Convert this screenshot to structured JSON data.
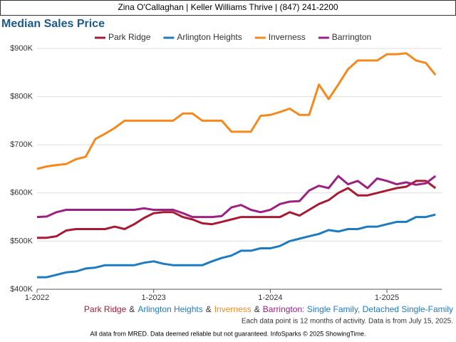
{
  "header": "Zina O'Callaghan | Keller Williams Thrive | (847) 241-2200",
  "chart_data": {
    "type": "line",
    "title": "Median Sales Price",
    "categories": [
      "1-2022",
      null,
      null,
      null,
      null,
      null,
      null,
      null,
      null,
      null,
      null,
      null,
      "1-2023",
      null,
      null,
      null,
      null,
      null,
      null,
      null,
      null,
      null,
      null,
      null,
      "1-2024",
      null,
      null,
      null,
      null,
      null,
      null,
      null,
      null,
      null,
      null,
      null,
      "1-2025",
      null,
      null,
      null,
      null,
      null
    ],
    "series": [
      {
        "name": "Park Ridge",
        "color": "#a81a34",
        "values": [
          507000,
          507000,
          510000,
          522000,
          525000,
          525000,
          525000,
          525000,
          530000,
          525000,
          535000,
          548000,
          558000,
          560000,
          560000,
          550000,
          545000,
          537000,
          535000,
          540000,
          545000,
          550000,
          550000,
          550000,
          550000,
          550000,
          560000,
          553000,
          565000,
          577000,
          585000,
          600000,
          610000,
          595000,
          595000,
          600000,
          605000,
          610000,
          613000,
          625000,
          625000,
          610000
        ]
      },
      {
        "name": "Arlington Heights",
        "color": "#1f7bbf",
        "values": [
          425000,
          425000,
          430000,
          435000,
          437000,
          443000,
          445000,
          450000,
          450000,
          450000,
          450000,
          455000,
          458000,
          453000,
          450000,
          450000,
          450000,
          450000,
          458000,
          465000,
          470000,
          480000,
          480000,
          485000,
          485000,
          490000,
          500000,
          505000,
          510000,
          515000,
          523000,
          520000,
          525000,
          525000,
          530000,
          530000,
          535000,
          540000,
          540000,
          550000,
          550000,
          555000
        ]
      },
      {
        "name": "Inverness",
        "color": "#f5891e",
        "values": [
          650000,
          655000,
          658000,
          660000,
          670000,
          675000,
          712000,
          723000,
          735000,
          750000,
          750000,
          750000,
          750000,
          750000,
          750000,
          765000,
          765000,
          750000,
          750000,
          750000,
          727000,
          727000,
          727000,
          760000,
          762000,
          768000,
          775000,
          762000,
          762000,
          825000,
          795000,
          825000,
          857000,
          875000,
          875000,
          875000,
          888000,
          888000,
          890000,
          875000,
          870000,
          845000
        ]
      },
      {
        "name": "Barrington",
        "color": "#9c2183",
        "values": [
          550000,
          551000,
          560000,
          565000,
          565000,
          565000,
          565000,
          565000,
          565000,
          565000,
          565000,
          568000,
          565000,
          565000,
          565000,
          558000,
          550000,
          550000,
          550000,
          552000,
          570000,
          575000,
          565000,
          560000,
          565000,
          577000,
          582000,
          583000,
          605000,
          615000,
          610000,
          635000,
          618000,
          625000,
          610000,
          630000,
          625000,
          618000,
          622000,
          617000,
          620000,
          635000
        ]
      }
    ],
    "ylim": [
      400000,
      900000
    ],
    "yticks": [
      {
        "value": 400000,
        "label": "$400K"
      },
      {
        "value": 500000,
        "label": "$500K"
      },
      {
        "value": 600000,
        "label": "$600K"
      },
      {
        "value": 700000,
        "label": "$700K"
      },
      {
        "value": 800000,
        "label": "$800K"
      },
      {
        "value": 900000,
        "label": "$900K"
      }
    ],
    "grid": true,
    "legend": "top",
    "separator": "&",
    "subtitle_suffix": ": Single Family, Detached Single-Family",
    "note": "Each data point is 12 months of activity. Data is from July 15, 2025.",
    "footer": "All data from MRED. Data deemed reliable but not guaranteed. InfoSparks © 2025 ShowingTime."
  }
}
